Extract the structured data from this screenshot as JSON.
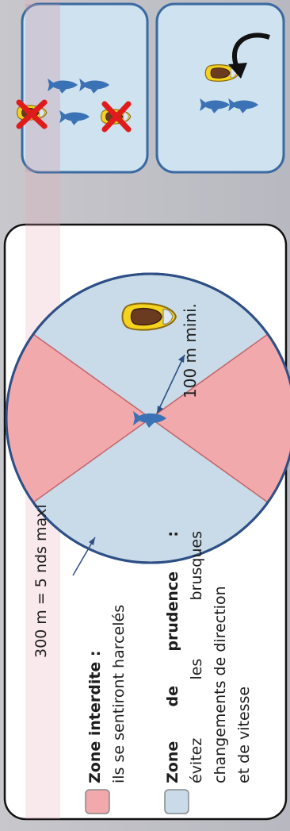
{
  "diagram": {
    "distance_300": "300 m  = 5 nds maxi",
    "forbidden_title": "Zone interdite :",
    "forbidden_desc": "ils se sentiront harcelés",
    "caution_title_word1": "Zone",
    "caution_title_word2": "de",
    "caution_title_word3": "prudence",
    "caution_title_colon": ":",
    "caution_line1_w1": "évitez",
    "caution_line1_w2": "les",
    "caution_line1_w3": "brusques",
    "caution_line2": "changements de direction",
    "caution_line3": "et de vitesse",
    "distance_100": "100 m mini."
  },
  "colors": {
    "forbidden_zone": "#f2a9ac",
    "caution_zone": "#c9dbe8",
    "circle_border": "#2d4f86",
    "fish": "#3a72b5",
    "boat_hull": "#f5d21e",
    "panel_fill": "#cfe2ef",
    "panel_border": "#3a6aa0",
    "cross": "#e01b1b"
  },
  "icons": [
    "fish-icon",
    "boat-icon",
    "cross-icon",
    "curved-arrow-icon"
  ]
}
